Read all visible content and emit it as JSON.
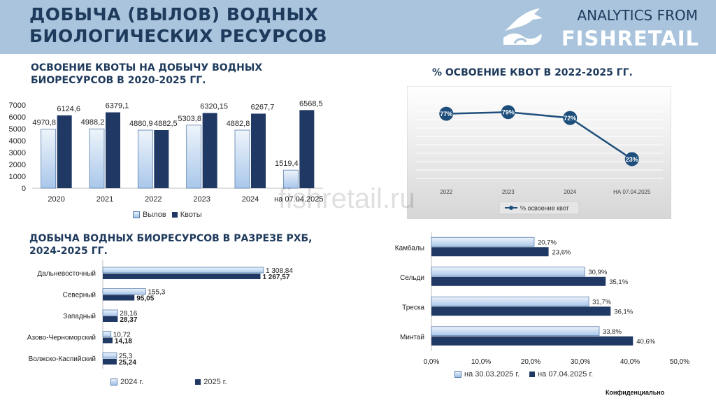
{
  "header": {
    "title_line1": "ДОБЫЧА (ВЫЛОВ) ВОДНЫХ",
    "title_line2": "БИОЛОГИЧЕСКИХ РЕСУРСОВ",
    "brand_line1": "ANALYTICS FROM",
    "brand_line2": "FISHRETAIL",
    "logo_icon": "fish-wave-logo-icon"
  },
  "watermark": "fishretail.ru",
  "confidential": "Конфиденциально",
  "colors": {
    "header_bg": "#a9c4dc",
    "dark_navy": "#1f3864",
    "light_blue": "#c5d9f1",
    "accent": "#1e3a5c"
  },
  "charts": {
    "quota": {
      "heading_line1": "ОСВОЕНИЕ КВОТЫ НА ДОБЫЧУ ВОДНЫХ",
      "heading_line2": "БИОРЕСУРСОВ В 2020-2025 ГГ.",
      "legend": [
        "Вылов",
        "Квоты"
      ]
    },
    "percent": {
      "heading": "% ОСВОЕНИЕ КВОТ В 2022-2025 ГГ.",
      "legend": "% освоение квот"
    },
    "rhb": {
      "heading_line1": "ДОБЫЧА ВОДНЫХ БИОРЕСУРСОВ В РАЗРЕЗЕ РХБ,",
      "heading_line2": "2024-2025 ГГ.",
      "legend": [
        "2024 г.",
        "2025 г."
      ]
    },
    "species": {
      "legend": [
        "на 30.03.2025 г.",
        "на 07.04.2025 г."
      ]
    }
  },
  "chart_data": [
    {
      "type": "bar",
      "categories": [
        "2020",
        "2021",
        "2022",
        "2023",
        "2024",
        "на 07.04.2025"
      ],
      "series": [
        {
          "name": "Вылов",
          "values": [
            4970.8,
            4988.2,
            4880.9,
            5303.8,
            4882.8,
            1519.4
          ],
          "labels": [
            "4970,8",
            "4988,2",
            "4880,9",
            "5303,8",
            "4882,8",
            "1519,4"
          ]
        },
        {
          "name": "Квоты",
          "values": [
            6124.6,
            6379.1,
            4882.5,
            6320.15,
            6267.7,
            6568.5
          ],
          "labels": [
            "6124,6",
            "6379,1",
            "4882,5",
            "6320,15",
            "6267,7",
            "6568,5"
          ]
        }
      ],
      "yticks": [
        "0",
        "1000",
        "2000",
        "3000",
        "4000",
        "5000",
        "6000",
        "7000"
      ],
      "ylim": [
        0,
        7000
      ]
    },
    {
      "type": "line",
      "categories": [
        "2022",
        "2023",
        "2024",
        "НА 07.04.2025"
      ],
      "series": [
        {
          "name": "% освоение квот",
          "values": [
            77,
            79,
            72,
            23
          ],
          "labels": [
            "77%",
            "79%",
            "72%",
            "23%"
          ]
        }
      ],
      "ylim": [
        0,
        100
      ],
      "grid": true
    },
    {
      "type": "bar",
      "orientation": "horizontal",
      "categories": [
        "Дальневосточный",
        "Северный",
        "Западный",
        "Азово-Черноморский",
        "Волжско-Каспийский"
      ],
      "series": [
        {
          "name": "2024 г.",
          "values": [
            1308.84,
            155.3,
            28.16,
            10.72,
            25.3
          ],
          "labels": [
            "1 308,84",
            "155,3",
            "28,16",
            "10,72",
            "25,3"
          ]
        },
        {
          "name": "2025 г.",
          "values": [
            1267.57,
            95.05,
            28.37,
            14.18,
            25.24
          ],
          "labels": [
            "1 267,57",
            "95,05",
            "28,37",
            "14,18",
            "25,24"
          ]
        }
      ]
    },
    {
      "type": "bar",
      "orientation": "horizontal",
      "categories": [
        "Камбалы",
        "Сельди",
        "Треска",
        "Минтай"
      ],
      "series": [
        {
          "name": "на 30.03.2025 г.",
          "values": [
            20.7,
            30.9,
            31.7,
            33.8
          ],
          "labels": [
            "20,7%",
            "30,9%",
            "31,7%",
            "33,8%"
          ]
        },
        {
          "name": "на 07.04.2025 г.",
          "values": [
            23.6,
            35.1,
            36.1,
            40.6
          ],
          "labels": [
            "23,6%",
            "35,1%",
            "36,1%",
            "40,6%"
          ]
        }
      ],
      "xticks": [
        "0,0%",
        "10,0%",
        "20,0%",
        "30,0%",
        "40,0%",
        "50,0%"
      ],
      "xlim": [
        0,
        50
      ]
    }
  ]
}
